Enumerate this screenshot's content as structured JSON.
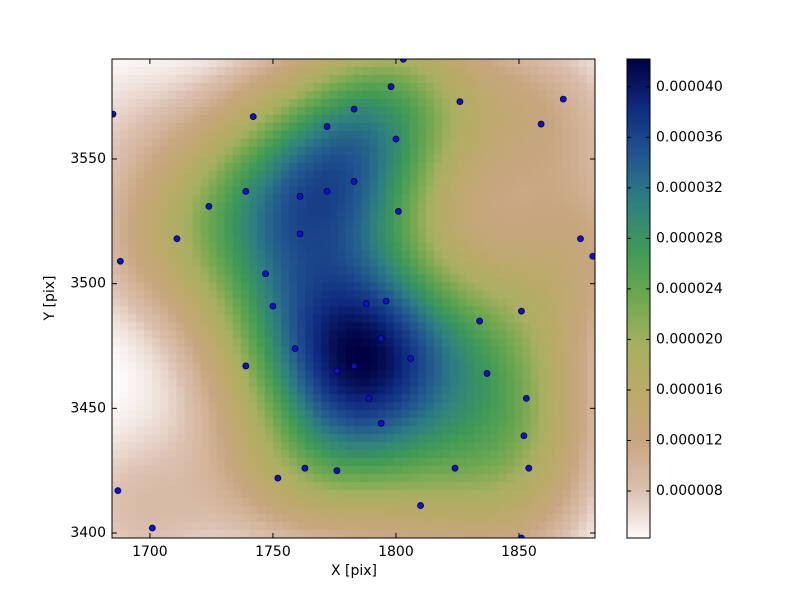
{
  "chart_data": {
    "type": "scatter",
    "xlabel": "X [pix]",
    "ylabel": "Y [pix]",
    "xlim": [
      1684.6,
      1880.9
    ],
    "ylim": [
      3398,
      3590.1
    ],
    "xticks": [
      1700,
      1750,
      1800,
      1850
    ],
    "yticks": [
      3400,
      3450,
      3500,
      3550
    ],
    "color": "#1010d0",
    "colormap": [
      "#fdfbfb",
      "#dcc0b0",
      "#c8a680",
      "#bcaa6a",
      "#a8b060",
      "#6ea850",
      "#3f9a55",
      "#2e8080",
      "#21558f",
      "#0f2a80",
      "#000040"
    ],
    "clim": [
      4.28e-06,
      4.22e-05
    ],
    "cticks": [
      {
        "value": 8e-06,
        "label": "0.000008"
      },
      {
        "value": 1.2e-05,
        "label": "0.000012"
      },
      {
        "value": 1.6e-05,
        "label": "0.000016"
      },
      {
        "value": 2e-05,
        "label": "0.000020"
      },
      {
        "value": 2.4e-05,
        "label": "0.000024"
      },
      {
        "value": 2.8e-05,
        "label": "0.000028"
      },
      {
        "value": 3.2e-05,
        "label": "0.000032"
      },
      {
        "value": 3.6e-05,
        "label": "0.000036"
      },
      {
        "value": 4e-05,
        "label": "0.000040"
      }
    ],
    "x": [
      1685,
      1798,
      1803,
      1826,
      1868,
      1859,
      1742,
      1772,
      1783,
      1800,
      1739,
      1724,
      1761,
      1772,
      1783,
      1801,
      1711,
      1761,
      1875,
      1688,
      1880,
      1747,
      1750,
      1788,
      1796,
      1834,
      1851,
      1794,
      1759,
      1739,
      1783,
      1776,
      1806,
      1837,
      1789,
      1853,
      1794,
      1852,
      1763,
      1776,
      1824,
      1854,
      1752,
      1810,
      1687,
      1701,
      1851
    ],
    "y": [
      3568,
      3579,
      3590,
      3573,
      3574,
      3564,
      3567,
      3563,
      3570,
      3558,
      3537,
      3531,
      3535,
      3537,
      3541,
      3529,
      3518,
      3520,
      3518,
      3509,
      3511,
      3504,
      3491,
      3492,
      3493,
      3485,
      3489,
      3478,
      3474,
      3467,
      3467,
      3465,
      3470,
      3464,
      3454,
      3454,
      3444,
      3439,
      3426,
      3425,
      3426,
      3426,
      3422,
      3411,
      3417,
      3402,
      3398
    ]
  }
}
